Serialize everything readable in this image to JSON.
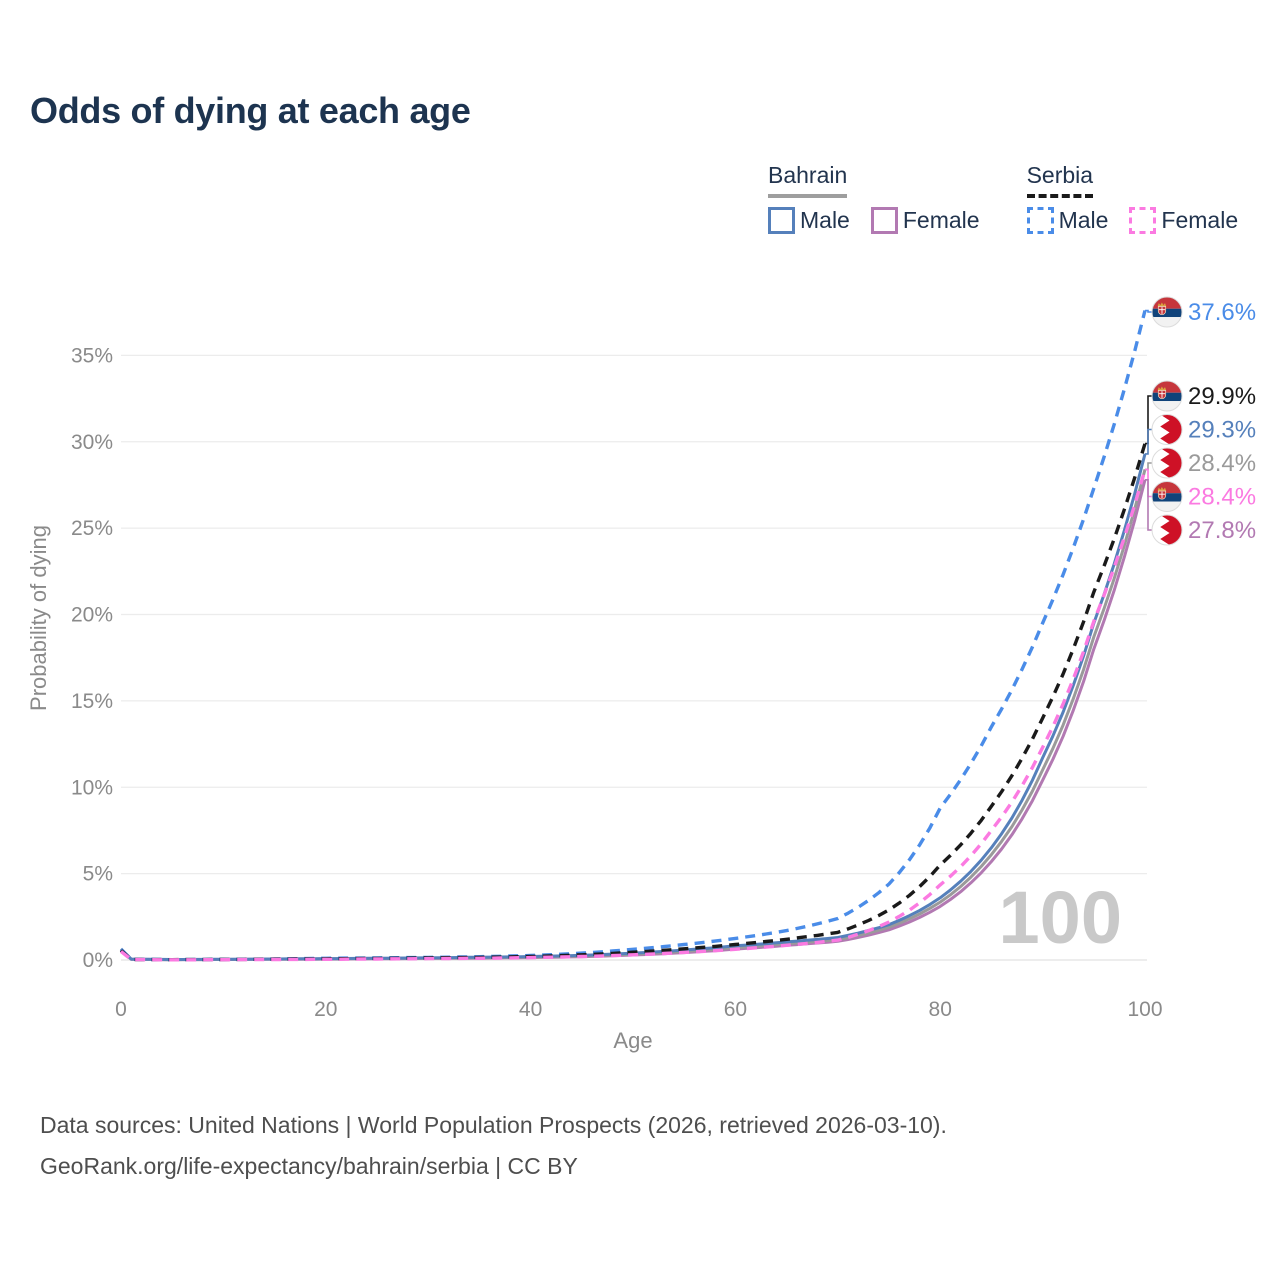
{
  "header": {
    "title": "Odds of dying at each age"
  },
  "legend": {
    "groups": [
      {
        "id": "bahrain",
        "country": "Bahrain",
        "line_style": "solid",
        "underline_color": "#9e9e9e",
        "items": [
          {
            "id": "bahrain-male",
            "label": "Male",
            "color": "#5580bb",
            "dashed": false
          },
          {
            "id": "bahrain-female",
            "label": "Female",
            "color": "#b279b2",
            "dashed": false
          }
        ]
      },
      {
        "id": "serbia",
        "country": "Serbia",
        "line_style": "dashed",
        "underline_color": "#1a1a1a",
        "items": [
          {
            "id": "serbia-male",
            "label": "Male",
            "color": "#4a8ce8",
            "dashed": true
          },
          {
            "id": "serbia-female",
            "label": "Female",
            "color": "#fb7ae1",
            "dashed": true
          }
        ]
      }
    ]
  },
  "chart_data": {
    "type": "line",
    "title": "Odds of dying at each age",
    "xlabel": "Age",
    "ylabel": "Probability of dying",
    "xlim": [
      0,
      100
    ],
    "ylim_percent": [
      0,
      37.6
    ],
    "x_ticks": [
      "0",
      "20",
      "40",
      "60",
      "80",
      "100"
    ],
    "y_ticks_percent": [
      "0%",
      "5%",
      "10%",
      "15%",
      "20%",
      "25%",
      "30%",
      "35%"
    ],
    "grid": "horizontal",
    "hover_age_watermark": "100",
    "ages": [
      0,
      1,
      5,
      10,
      15,
      20,
      25,
      30,
      35,
      40,
      45,
      50,
      55,
      60,
      65,
      70,
      75,
      80,
      85,
      90,
      95,
      100
    ],
    "series": [
      {
        "id": "bahrain-female",
        "name": "Bahrain Female",
        "color": "#b279b2",
        "dashed": false,
        "values_percent": [
          0.55,
          0.04,
          0.02,
          0.03,
          0.04,
          0.05,
          0.07,
          0.09,
          0.11,
          0.14,
          0.19,
          0.29,
          0.43,
          0.63,
          0.85,
          1.08,
          1.75,
          3.1,
          5.7,
          10.4,
          18.0,
          27.8
        ]
      },
      {
        "id": "bahrain-total",
        "name": "Bahrain",
        "color": "#9a9a9a",
        "dashed": false,
        "values_percent": [
          0.6,
          0.04,
          0.02,
          0.03,
          0.05,
          0.07,
          0.09,
          0.11,
          0.13,
          0.17,
          0.23,
          0.34,
          0.5,
          0.72,
          0.95,
          1.18,
          1.9,
          3.35,
          6.1,
          11.0,
          18.7,
          28.4
        ]
      },
      {
        "id": "bahrain-male",
        "name": "Bahrain Male",
        "color": "#5580bb",
        "dashed": false,
        "values_percent": [
          0.65,
          0.05,
          0.03,
          0.04,
          0.06,
          0.08,
          0.1,
          0.13,
          0.16,
          0.2,
          0.27,
          0.4,
          0.58,
          0.82,
          1.05,
          1.3,
          2.05,
          3.6,
          6.5,
          11.7,
          19.5,
          29.3
        ]
      },
      {
        "id": "serbia-male",
        "name": "Serbia Male",
        "color": "#4a8ce8",
        "dashed": true,
        "values_percent": [
          0.6,
          0.04,
          0.02,
          0.03,
          0.06,
          0.1,
          0.12,
          0.15,
          0.19,
          0.26,
          0.4,
          0.62,
          0.9,
          1.25,
          1.7,
          2.4,
          4.4,
          8.8,
          13.5,
          19.5,
          27.3,
          37.6
        ]
      },
      {
        "id": "serbia-total",
        "name": "Serbia",
        "color": "#1a1a1a",
        "dashed": true,
        "values_percent": [
          0.55,
          0.03,
          0.02,
          0.03,
          0.05,
          0.07,
          0.09,
          0.12,
          0.15,
          0.2,
          0.3,
          0.45,
          0.65,
          0.9,
          1.2,
          1.6,
          2.9,
          5.5,
          8.9,
          14.0,
          21.3,
          29.9
        ]
      },
      {
        "id": "serbia-female",
        "name": "Serbia Female",
        "color": "#fb7ae1",
        "dashed": true,
        "values_percent": [
          0.5,
          0.03,
          0.01,
          0.02,
          0.03,
          0.04,
          0.06,
          0.08,
          0.1,
          0.14,
          0.2,
          0.3,
          0.44,
          0.62,
          0.85,
          1.15,
          2.2,
          4.35,
          7.5,
          12.3,
          19.6,
          28.4
        ]
      }
    ],
    "end_labels": [
      {
        "series": "serbia-male",
        "text": "37.6%",
        "color": "#4a8ce8",
        "flag": "serbia"
      },
      {
        "series": "serbia-total",
        "text": "29.9%",
        "color": "#1a1a1a",
        "flag": "serbia"
      },
      {
        "series": "bahrain-male",
        "text": "29.3%",
        "color": "#5580bb",
        "flag": "bahrain"
      },
      {
        "series": "bahrain-total",
        "text": "28.4%",
        "color": "#9a9a9a",
        "flag": "bahrain"
      },
      {
        "series": "serbia-female",
        "text": "28.4%",
        "color": "#fb7ae1",
        "flag": "serbia"
      },
      {
        "series": "bahrain-female",
        "text": "27.8%",
        "color": "#b279b2",
        "flag": "bahrain"
      }
    ],
    "flag_colors": {
      "serbia": {
        "red": "#c6363c",
        "blue": "#10437a",
        "white": "#f2f2f2",
        "crown_gold": "#d9a440"
      },
      "bahrain": {
        "red": "#ce1126",
        "white": "#ffffff"
      }
    }
  },
  "footer": {
    "line1": "Data sources: United Nations | World Population Prospects (2026, retrieved 2026-03-10).",
    "line2": "GeoRank.org/life-expectancy/bahrain/serbia | CC BY"
  }
}
